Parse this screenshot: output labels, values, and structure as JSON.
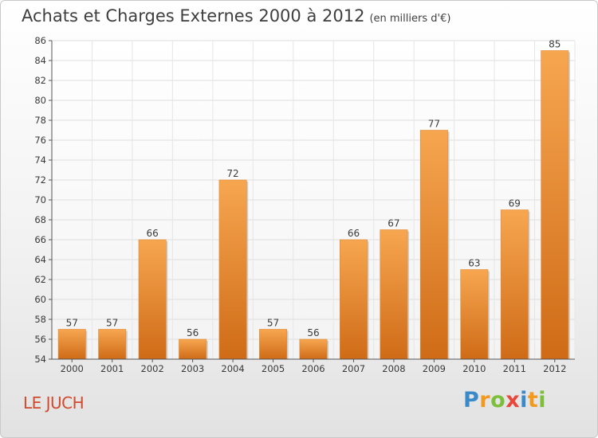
{
  "title": "Achats et Charges Externes 2000 à 2012",
  "subtitle": "(en milliers d'€)",
  "location": "LE JUCH",
  "logo": {
    "letters": [
      {
        "ch": "P",
        "color": "#3a8ac9"
      },
      {
        "ch": "r",
        "color": "#f29a1f"
      },
      {
        "ch": "o",
        "color": "#7bbf3a"
      },
      {
        "ch": "x",
        "color": "#e8473c"
      },
      {
        "ch": "i",
        "color": "#3a8ac9"
      },
      {
        "ch": "t",
        "color": "#f29a1f"
      },
      {
        "ch": "i",
        "color": "#7bbf3a"
      }
    ]
  },
  "chart_data": {
    "type": "bar",
    "categories": [
      "2000",
      "2001",
      "2002",
      "2003",
      "2004",
      "2005",
      "2006",
      "2007",
      "2008",
      "2009",
      "2010",
      "2011",
      "2012"
    ],
    "values": [
      57,
      57,
      66,
      56,
      72,
      57,
      56,
      66,
      67,
      77,
      63,
      69,
      85
    ],
    "ylim": [
      54,
      86
    ],
    "yticks": [
      54,
      56,
      58,
      60,
      62,
      64,
      66,
      68,
      70,
      72,
      74,
      76,
      78,
      80,
      82,
      84,
      86
    ],
    "grid": true,
    "bar_color": "#f0953a"
  }
}
